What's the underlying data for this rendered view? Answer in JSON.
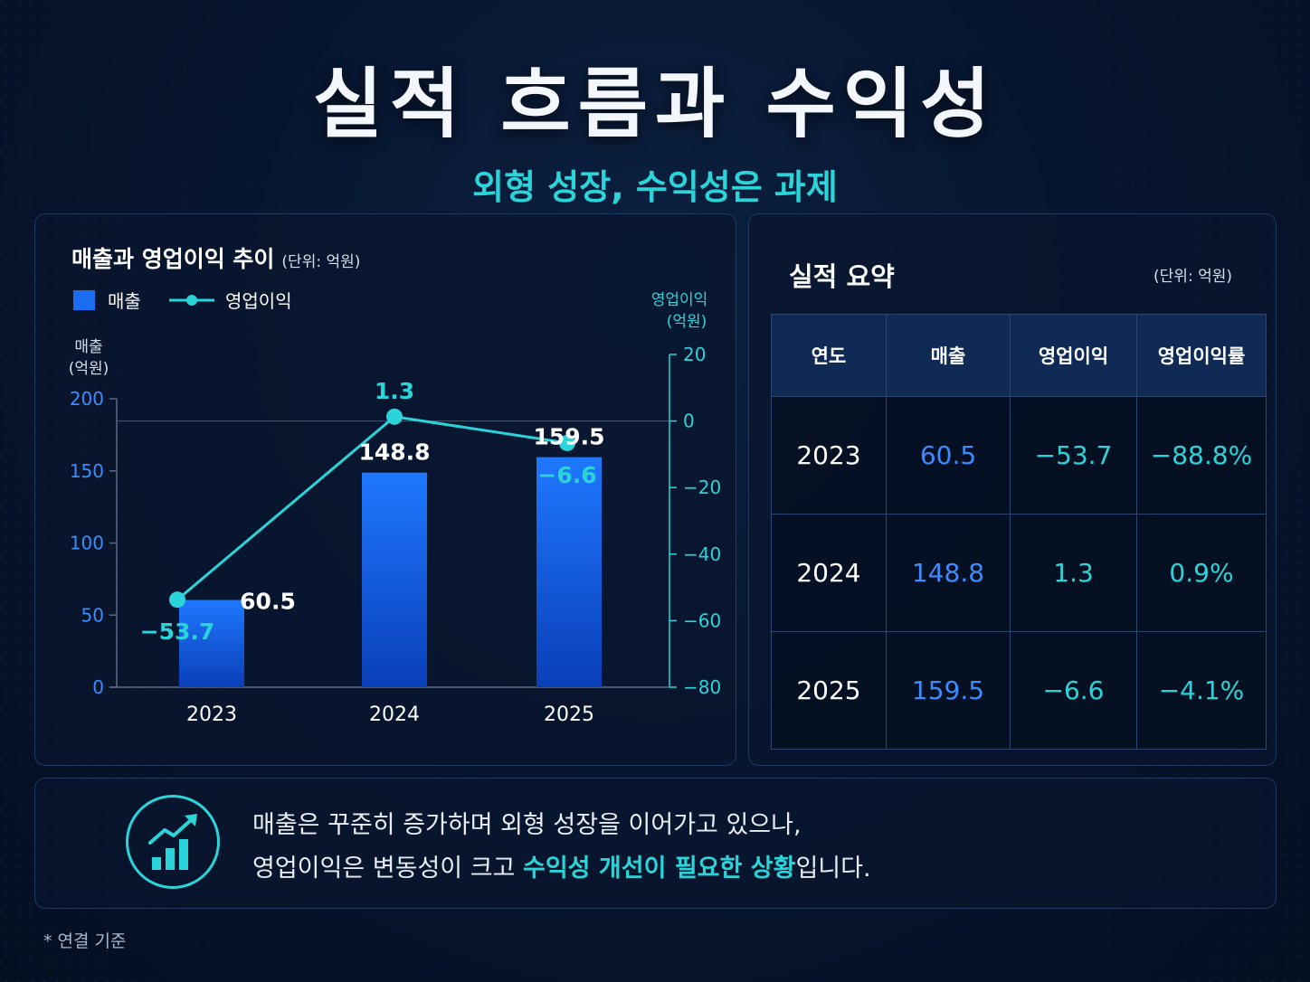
{
  "header": {
    "title": "실적 흐름과 수익성",
    "subtitle": "외형 성장, 수익성은 과제"
  },
  "chart": {
    "title": "매출과 영업이익 추이",
    "unit": "(단위: 억원)",
    "legend": {
      "bar": "매출",
      "line": "영업이익"
    },
    "left_axis_title": [
      "매출",
      "(억원)"
    ],
    "right_axis_title": [
      "영업이익",
      "(억원)"
    ]
  },
  "chart_data": {
    "type": "bar",
    "categories": [
      "2023",
      "2024",
      "2025"
    ],
    "series": [
      {
        "name": "매출",
        "type": "bar",
        "axis": "left",
        "values": [
          60.5,
          148.8,
          159.5
        ]
      },
      {
        "name": "영업이익",
        "type": "line",
        "axis": "right",
        "values": [
          -53.7,
          1.3,
          -6.6
        ]
      }
    ],
    "left_axis": {
      "ylim": [
        0,
        200
      ],
      "ticks": [
        0,
        50,
        100,
        150,
        200
      ]
    },
    "right_axis": {
      "ylim": [
        -80,
        20
      ],
      "ticks": [
        -80,
        -60,
        -40,
        -20,
        0,
        20
      ]
    },
    "legend_position": "top-left",
    "grid": false,
    "colors": {
      "bar": "#1a6df0",
      "line": "#2ad4d8",
      "left_axis": "#3b8cff"
    }
  },
  "summary": {
    "title": "실적 요약",
    "unit": "(단위: 억원)",
    "headers": [
      "연도",
      "매출",
      "영업이익",
      "영업이익률"
    ],
    "rows": [
      [
        "2023",
        "60.5",
        "-53.7",
        "-88.8%"
      ],
      [
        "2024",
        "148.8",
        "1.3",
        "0.9%"
      ],
      [
        "2025",
        "159.5",
        "-6.6",
        "-4.1%"
      ]
    ]
  },
  "insight": {
    "line1": "매출은 꾸준히 증가하며 외형 성장을 이어가고 있으나,",
    "line2_prefix": "영업이익은 변동성이 크고 ",
    "line2_highlight": "수익성 개선이 필요한 상황",
    "line2_suffix": "입니다."
  },
  "footnote": "* 연결 기준",
  "icons": {
    "insight": "bar-chart-growth-icon"
  }
}
